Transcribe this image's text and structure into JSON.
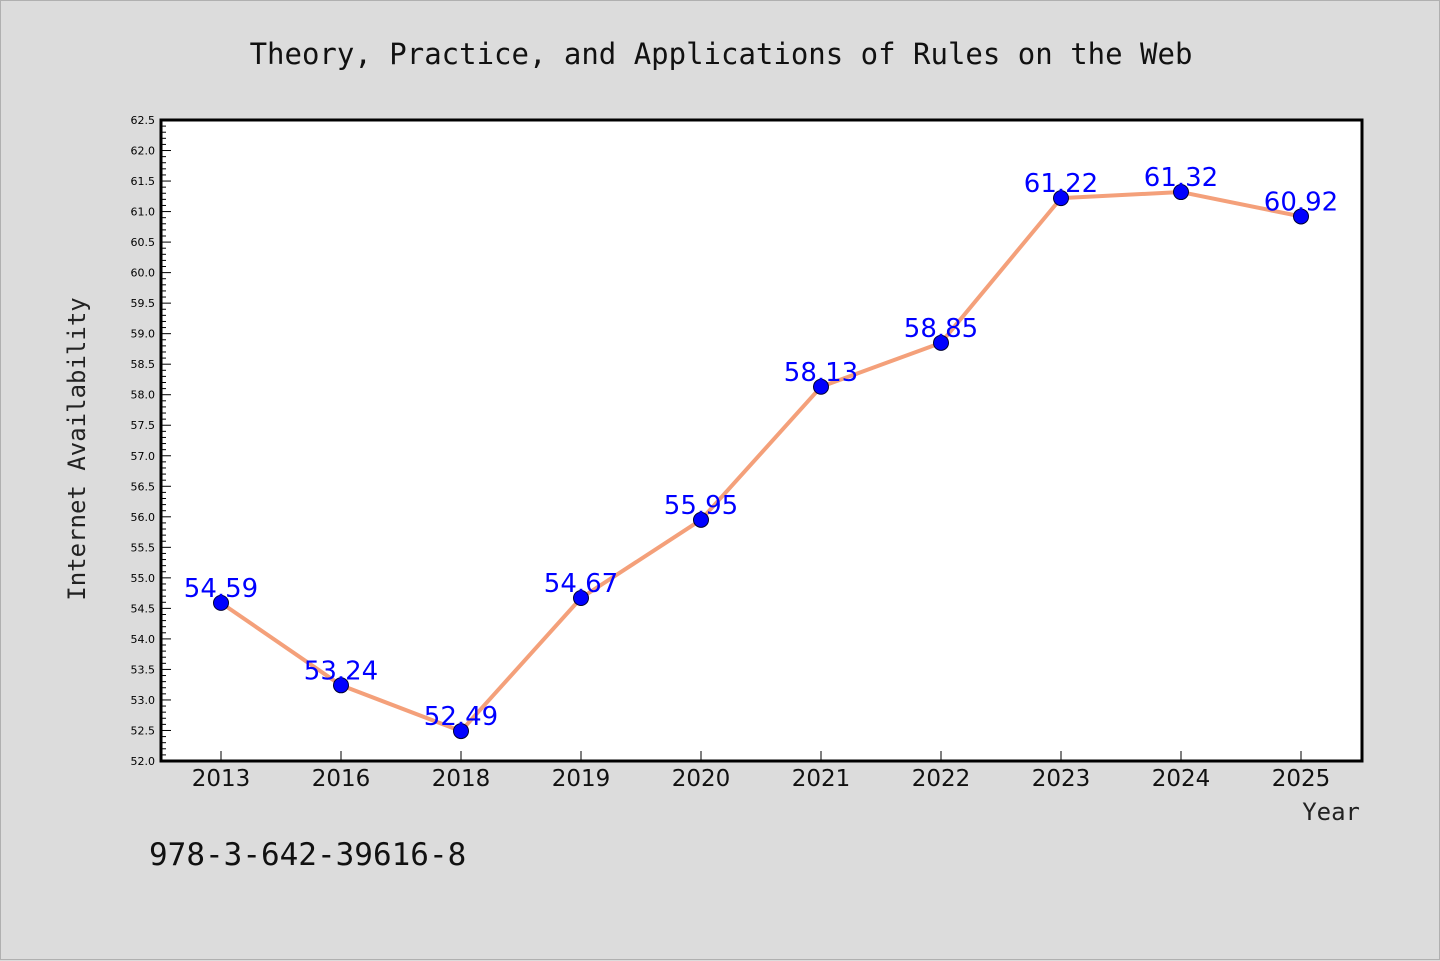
{
  "chart_data": {
    "type": "line",
    "title": "Theory, Practice, and Applications of Rules on the Web",
    "xlabel": "Year",
    "ylabel": "Internet Availability",
    "categories": [
      "2013",
      "2016",
      "2018",
      "2019",
      "2020",
      "2021",
      "2022",
      "2023",
      "2024",
      "2025"
    ],
    "series": [
      {
        "values": [
          54.59,
          53.24,
          52.49,
          54.67,
          55.95,
          58.13,
          58.85,
          61.22,
          61.32,
          60.92
        ],
        "labels": [
          "54.59",
          "53.24",
          "52.49",
          "54.67",
          "55.95",
          "58.13",
          "58.85",
          "61.22",
          "61.32",
          "60.92"
        ],
        "line_color": "#f4a07a",
        "marker_color": "#0000ff"
      }
    ],
    "ylim": [
      52.0,
      62.5
    ],
    "yticks": [
      "52.0",
      "52.5",
      "53.0",
      "53.5",
      "54.0",
      "54.5",
      "55.0",
      "55.5",
      "56.0",
      "56.5",
      "57.0",
      "57.5",
      "58.0",
      "58.5",
      "59.0",
      "59.5",
      "60.0",
      "60.5",
      "61.0",
      "61.5",
      "62.0",
      "62.5"
    ],
    "grid": false,
    "legend": "none"
  },
  "footnote": "978-3-642-39616-8",
  "colors": {
    "background": "#dcdcdc",
    "plot_background": "#ffffff",
    "line": "#f4a07a",
    "marker": "#0000ff",
    "label": "#0000ff"
  }
}
